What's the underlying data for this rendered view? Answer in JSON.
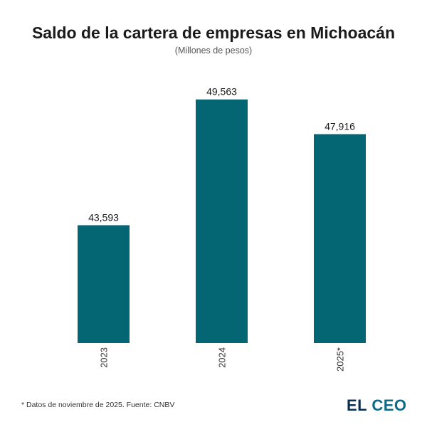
{
  "colors": {
    "bar": "#046672",
    "text": "#1a1a1a",
    "subtitle": "#555555"
  },
  "chart_data": {
    "type": "bar",
    "title": "Saldo de la cartera de empresas en Michoacán",
    "subtitle": "(Millones de pesos)",
    "categories": [
      "2023",
      "2024",
      "2025*"
    ],
    "values": [
      43593,
      49563,
      47916
    ],
    "value_labels": [
      "43,593",
      "49,563",
      "47,916"
    ],
    "xlabel": "",
    "ylabel": "",
    "ylim": [
      38000,
      50500
    ],
    "grid": false,
    "legend": "none"
  },
  "footnote": "* Datos de noviembre de 2025. Fuente: CNBV",
  "logo": {
    "part_a": "EL",
    "part_b": "CEO"
  }
}
